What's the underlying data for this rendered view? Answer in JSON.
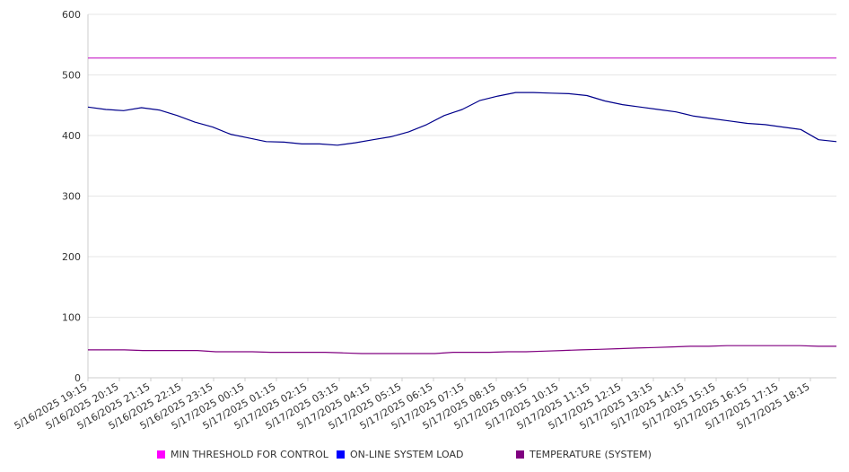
{
  "chart_data": {
    "type": "line",
    "ylim": [
      0,
      600
    ],
    "yticks": [
      0,
      100,
      200,
      300,
      400,
      500,
      600
    ],
    "grid": true,
    "legend_placement": "bottom",
    "xtick_labels": [
      "5/16/2025 19:15",
      "5/16/2025 20:15",
      "5/16/2025 21:15",
      "5/16/2025 22:15",
      "5/16/2025 23:15",
      "5/17/2025 00:15",
      "5/17/2025 01:15",
      "5/17/2025 02:15",
      "5/17/2025 03:15",
      "5/17/2025 04:15",
      "5/17/2025 05:15",
      "5/17/2025 06:15",
      "5/17/2025 07:15",
      "5/17/2025 08:15",
      "5/17/2025 09:15",
      "5/17/2025 10:15",
      "5/17/2025 11:15",
      "5/17/2025 12:15",
      "5/17/2025 13:15",
      "5/17/2025 14:15",
      "5/17/2025 15:15",
      "5/17/2025 16:15",
      "5/17/2025 17:15",
      "5/17/2025 18:15"
    ],
    "series": [
      {
        "name": "MIN THRESHOLD FOR CONTROL",
        "color": "#cc33cc",
        "legend_color": "#ff00ff",
        "values": [
          528,
          528,
          528,
          528,
          528,
          528,
          528,
          528,
          528,
          528,
          528,
          528,
          528,
          528,
          528,
          528,
          528,
          528,
          528,
          528,
          528,
          528,
          528,
          528,
          528
        ]
      },
      {
        "name": "ON-LINE SYSTEM LOAD",
        "color": "#00008b",
        "legend_color": "#0000ff",
        "values": [
          447,
          443,
          441,
          446,
          442,
          433,
          422,
          414,
          402,
          396,
          390,
          389,
          386,
          386,
          384,
          388,
          393,
          398,
          406,
          418,
          433,
          443,
          458,
          465,
          471,
          471,
          470,
          469,
          466,
          457,
          451,
          447,
          443,
          439,
          432,
          428,
          424,
          420,
          418,
          414,
          410,
          393,
          390
        ]
      },
      {
        "name": "TEMPERATURE (SYSTEM)",
        "color": "#800080",
        "legend_color": "#800080",
        "values": [
          46,
          46,
          46,
          45,
          45,
          45,
          45,
          43,
          43,
          43,
          42,
          42,
          42,
          42,
          41,
          40,
          40,
          40,
          40,
          40,
          42,
          42,
          42,
          43,
          43,
          44,
          45,
          46,
          47,
          48,
          49,
          50,
          51,
          52,
          52,
          53,
          53,
          53,
          53,
          53,
          52,
          52
        ]
      }
    ]
  }
}
